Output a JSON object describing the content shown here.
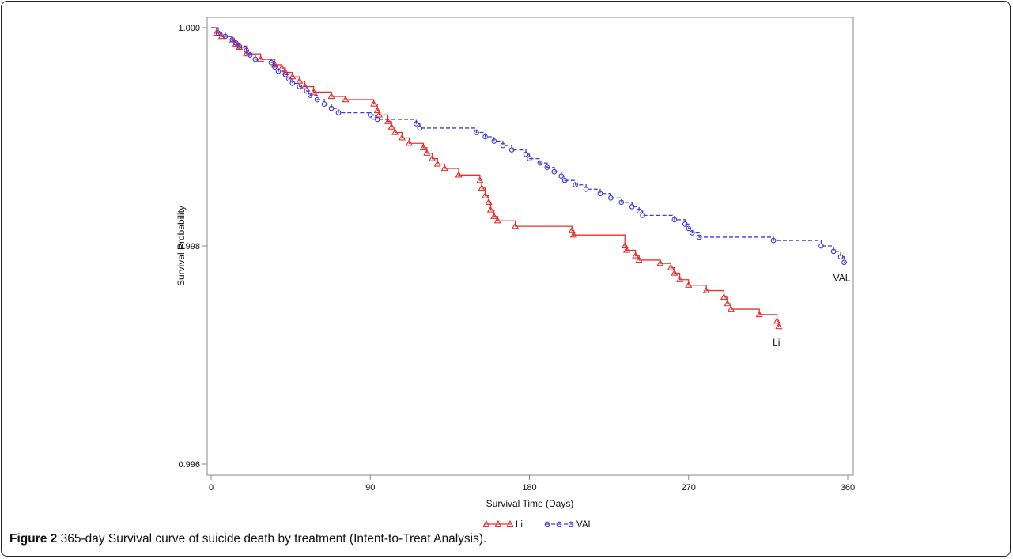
{
  "caption": {
    "label": "Figure 2",
    "text": "365-day Survival curve of suicide death by treatment (Intent-to-Treat Analysis)."
  },
  "colors": {
    "li": "#e8302f",
    "val": "#3a3adf",
    "axis": "#888888",
    "text": "#111111"
  },
  "chart_data": {
    "type": "line",
    "title": "",
    "xlabel": "Survival Time (Days)",
    "ylabel": "Survival Probability",
    "xlim": [
      0,
      360
    ],
    "ylim": [
      0.996,
      1.0
    ],
    "xticks": [
      0,
      90,
      180,
      270,
      360
    ],
    "xtick_labels": [
      "0",
      "90",
      "180",
      "270",
      "360"
    ],
    "yticks": [
      0.996,
      0.998,
      1.0
    ],
    "ytick_labels": [
      "0.996",
      "0.998",
      "1.000"
    ],
    "grid": false,
    "legend_position": "bottom-center",
    "series": [
      {
        "name": "Li",
        "style": "solid",
        "marker": "triangle",
        "end_label": "Li",
        "x": [
          0,
          3,
          6,
          12,
          14,
          16,
          20,
          28,
          36,
          40,
          42,
          46,
          50,
          53,
          58,
          68,
          76,
          92,
          94,
          95,
          100,
          102,
          104,
          108,
          112,
          120,
          122,
          125,
          128,
          132,
          140,
          152,
          153,
          155,
          157,
          158,
          160,
          162,
          172,
          204,
          205,
          234,
          235,
          240,
          242,
          254,
          260,
          262,
          265,
          270,
          280,
          290,
          292,
          294,
          310,
          320,
          321
        ],
        "y": [
          1.0,
          0.99995,
          0.99992,
          0.99988,
          0.99985,
          0.99982,
          0.99976,
          0.99971,
          0.99966,
          0.99963,
          0.99959,
          0.99955,
          0.99951,
          0.99946,
          0.99941,
          0.99937,
          0.99934,
          0.9993,
          0.99924,
          0.9992,
          0.99914,
          0.99909,
          0.99904,
          0.99899,
          0.99894,
          0.9989,
          0.99885,
          0.9988,
          0.99875,
          0.99871,
          0.99865,
          0.9986,
          0.99853,
          0.99846,
          0.9984,
          0.99833,
          0.99827,
          0.99823,
          0.99818,
          0.99814,
          0.9981,
          0.998,
          0.99796,
          0.99791,
          0.99787,
          0.99784,
          0.9978,
          0.99775,
          0.99769,
          0.99764,
          0.99759,
          0.99753,
          0.99747,
          0.99742,
          0.99737,
          0.99731,
          0.99726
        ]
      },
      {
        "name": "VAL",
        "style": "dashed",
        "marker": "circle",
        "end_label": "VAL",
        "x": [
          0,
          4,
          8,
          12,
          14,
          16,
          20,
          22,
          25,
          34,
          36,
          38,
          42,
          44,
          46,
          50,
          54,
          56,
          60,
          64,
          68,
          72,
          90,
          92,
          94,
          116,
          118,
          150,
          155,
          160,
          165,
          170,
          178,
          180,
          186,
          190,
          194,
          198,
          200,
          206,
          212,
          220,
          226,
          232,
          238,
          242,
          244,
          262,
          268,
          270,
          272,
          276,
          318,
          345,
          352,
          356,
          358
        ],
        "y": [
          1.0,
          0.99995,
          0.99992,
          0.99989,
          0.99986,
          0.99983,
          0.99979,
          0.99975,
          0.99971,
          0.99968,
          0.99964,
          0.9996,
          0.99957,
          0.99953,
          0.99949,
          0.99946,
          0.99942,
          0.99938,
          0.99934,
          0.9993,
          0.99926,
          0.99922,
          0.9992,
          0.99918,
          0.99916,
          0.99912,
          0.99908,
          0.99904,
          0.999,
          0.99896,
          0.99892,
          0.99888,
          0.99884,
          0.9988,
          0.99876,
          0.99872,
          0.99868,
          0.99864,
          0.9986,
          0.99856,
          0.99852,
          0.99848,
          0.99844,
          0.9984,
          0.99836,
          0.99832,
          0.99828,
          0.99824,
          0.9982,
          0.99816,
          0.99812,
          0.99808,
          0.99805,
          0.998,
          0.99795,
          0.9979,
          0.99785
        ]
      }
    ]
  }
}
